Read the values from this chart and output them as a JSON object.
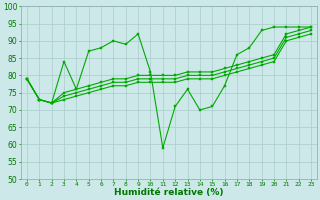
{
  "bg_color": "#cce8e8",
  "grid_color": "#aacccc",
  "line_color": "#00aa00",
  "xlabel": "Humidité relative (%)",
  "ylim": [
    50,
    100
  ],
  "xlim": [
    -0.5,
    23.5
  ],
  "yticks": [
    50,
    55,
    60,
    65,
    70,
    75,
    80,
    85,
    90,
    95,
    100
  ],
  "xticks": [
    0,
    1,
    2,
    3,
    4,
    5,
    6,
    7,
    8,
    9,
    10,
    11,
    12,
    13,
    14,
    15,
    16,
    17,
    18,
    19,
    20,
    21,
    22,
    23
  ],
  "series1_x": [
    0,
    1,
    2,
    3,
    4,
    5,
    6,
    7,
    8,
    9,
    10,
    11,
    12,
    13,
    14,
    15,
    16,
    17,
    18,
    19,
    20,
    21,
    22,
    23
  ],
  "series1_y": [
    79,
    73,
    72,
    84,
    76,
    87,
    88,
    90,
    89,
    92,
    81,
    59,
    71,
    76,
    70,
    71,
    77,
    86,
    88,
    93,
    94,
    94,
    94,
    94
  ],
  "series2_x": [
    0,
    1,
    2,
    3,
    4,
    5,
    6,
    7,
    8,
    9,
    10,
    11,
    12,
    13,
    14,
    15,
    16,
    17,
    18,
    19,
    20,
    21,
    22,
    23
  ],
  "series2_y": [
    79,
    73,
    72,
    75,
    76,
    77,
    78,
    79,
    79,
    80,
    80,
    80,
    80,
    81,
    81,
    81,
    82,
    83,
    84,
    85,
    86,
    92,
    93,
    94
  ],
  "series3_x": [
    0,
    1,
    2,
    3,
    4,
    5,
    6,
    7,
    8,
    9,
    10,
    11,
    12,
    13,
    14,
    15,
    16,
    17,
    18,
    19,
    20,
    21,
    22,
    23
  ],
  "series3_y": [
    79,
    73,
    72,
    74,
    75,
    76,
    77,
    78,
    78,
    79,
    79,
    79,
    79,
    80,
    80,
    80,
    81,
    82,
    83,
    84,
    85,
    91,
    92,
    93
  ],
  "series4_x": [
    0,
    1,
    2,
    3,
    4,
    5,
    6,
    7,
    8,
    9,
    10,
    11,
    12,
    13,
    14,
    15,
    16,
    17,
    18,
    19,
    20,
    21,
    22,
    23
  ],
  "series4_y": [
    79,
    73,
    72,
    73,
    74,
    75,
    76,
    77,
    77,
    78,
    78,
    78,
    78,
    79,
    79,
    79,
    80,
    81,
    82,
    83,
    84,
    90,
    91,
    92
  ]
}
